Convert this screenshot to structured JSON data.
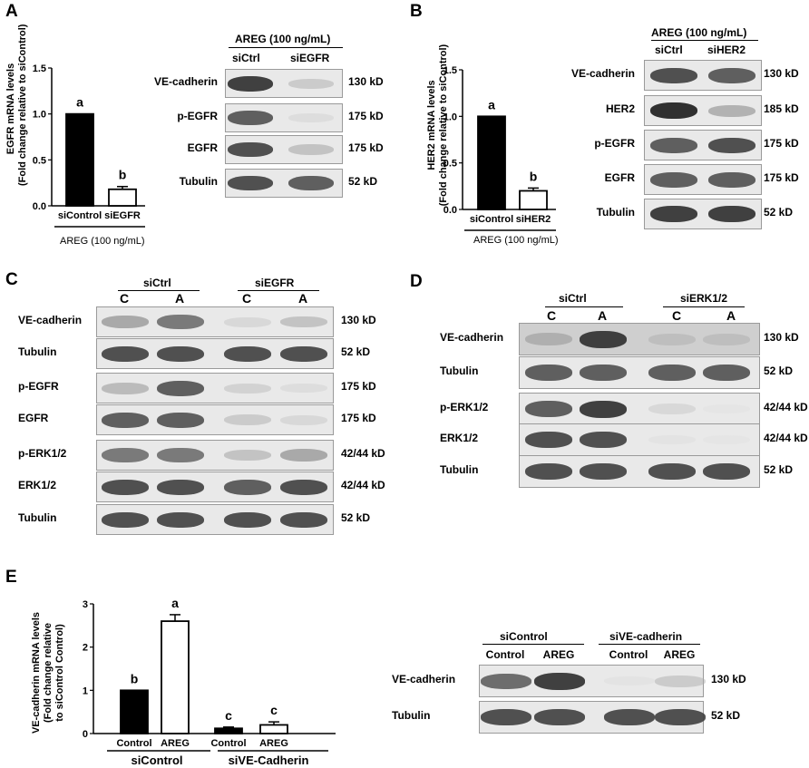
{
  "panels": {
    "A": {
      "label": "A",
      "chart_data": {
        "type": "bar",
        "categories": [
          "siControl",
          "siEGFR"
        ],
        "values": [
          1.0,
          0.18
        ],
        "errors": [
          0.0,
          0.03
        ],
        "sig_letters": [
          "a",
          "b"
        ],
        "fills": [
          "#000000",
          "#ffffff"
        ],
        "ylabel_line1": "EGFR mRNA levels",
        "ylabel_line2": "(Fold change relative to siControl)",
        "yticks": [
          "0.0",
          "0.5",
          "1.0",
          "1.5"
        ],
        "ylim": [
          0,
          1.5
        ],
        "treatment": "AREG (100 ng/mL)"
      },
      "blot": {
        "header": "AREG (100  ng/mL)",
        "groups": [
          "siCtrl",
          "siEGFR"
        ],
        "rows": [
          {
            "name": "VE-cadherin",
            "kd": "130 kD",
            "intensity": [
              0.9,
              0.3
            ]
          },
          {
            "name": "p-EGFR",
            "kd": "175 kD",
            "intensity": [
              0.8,
              0.15
            ]
          },
          {
            "name": "EGFR",
            "kd": "175 kD",
            "intensity": [
              0.85,
              0.35
            ]
          },
          {
            "name": "Tubulin",
            "kd": "52 kD",
            "intensity": [
              0.85,
              0.8
            ]
          }
        ]
      }
    },
    "B": {
      "label": "B",
      "chart_data": {
        "type": "bar",
        "categories": [
          "siControl",
          "siHER2"
        ],
        "values": [
          1.0,
          0.2
        ],
        "errors": [
          0.0,
          0.03
        ],
        "sig_letters": [
          "a",
          "b"
        ],
        "fills": [
          "#000000",
          "#ffffff"
        ],
        "ylabel_line1": "HER2 mRNA levels",
        "ylabel_line2": "(Fold change relative to siControl)",
        "yticks": [
          "0.0",
          "0.5",
          "1.0",
          "1.5"
        ],
        "ylim": [
          0,
          1.5
        ],
        "treatment": "AREG (100 ng/mL)"
      },
      "blot": {
        "header": "AREG (100  ng/mL)",
        "groups": [
          "siCtrl",
          "siHER2"
        ],
        "rows": [
          {
            "name": "VE-cadherin",
            "kd": "130 kD",
            "intensity": [
              0.85,
              0.8
            ]
          },
          {
            "name": "HER2",
            "kd": "185 kD",
            "intensity": [
              0.95,
              0.45
            ]
          },
          {
            "name": "p-EGFR",
            "kd": "175 kD",
            "intensity": [
              0.8,
              0.85
            ]
          },
          {
            "name": "EGFR",
            "kd": "175 kD",
            "intensity": [
              0.8,
              0.8
            ]
          },
          {
            "name": "Tubulin",
            "kd": "52 kD",
            "intensity": [
              0.9,
              0.9
            ]
          }
        ]
      }
    },
    "C": {
      "label": "C",
      "groups": [
        "siCtrl",
        "siEGFR"
      ],
      "lanes": [
        "C",
        "A",
        "C",
        "A"
      ],
      "rows": [
        {
          "name": "VE-cadherin",
          "kd": "130 kD",
          "intensity": [
            0.5,
            0.7,
            0.2,
            0.35
          ]
        },
        {
          "name": "Tubulin",
          "kd": "52 kD",
          "intensity": [
            0.85,
            0.85,
            0.85,
            0.85
          ]
        },
        {
          "name": "p-EGFR",
          "kd": "175 kD",
          "intensity": [
            0.4,
            0.8,
            0.25,
            0.15
          ]
        },
        {
          "name": "EGFR",
          "kd": "175 kD",
          "intensity": [
            0.8,
            0.8,
            0.3,
            0.2
          ]
        },
        {
          "name": "p-ERK1/2",
          "kd": "42/44 kD",
          "intensity": [
            0.7,
            0.7,
            0.35,
            0.5
          ]
        },
        {
          "name": "ERK1/2",
          "kd": "42/44 kD",
          "intensity": [
            0.85,
            0.85,
            0.8,
            0.85
          ]
        },
        {
          "name": "Tubulin",
          "kd": "52 kD",
          "intensity": [
            0.85,
            0.85,
            0.85,
            0.85
          ]
        }
      ]
    },
    "D": {
      "label": "D",
      "groups": [
        "siCtrl",
        "siERK1/2"
      ],
      "lanes": [
        "C",
        "A",
        "C",
        "A"
      ],
      "rows": [
        {
          "name": "VE-cadherin",
          "kd": "130 kD",
          "intensity": [
            0.4,
            0.9,
            0.3,
            0.3
          ]
        },
        {
          "name": "Tubulin",
          "kd": "52 kD",
          "intensity": [
            0.8,
            0.8,
            0.8,
            0.8
          ]
        },
        {
          "name": "p-ERK1/2",
          "kd": "42/44 kD",
          "intensity": [
            0.8,
            0.9,
            0.2,
            0.05
          ]
        },
        {
          "name": "ERK1/2",
          "kd": "42/44 kD",
          "intensity": [
            0.85,
            0.85,
            0.08,
            0.05
          ]
        },
        {
          "name": "Tubulin",
          "kd": "52 kD",
          "intensity": [
            0.85,
            0.85,
            0.85,
            0.85
          ]
        }
      ]
    },
    "E": {
      "label": "E",
      "chart_data": {
        "type": "bar",
        "categories": [
          "Control",
          "AREG",
          "Control",
          "AREG"
        ],
        "groups": [
          "siControl",
          "siVE-Cadherin"
        ],
        "values": [
          1.0,
          2.6,
          0.12,
          0.2
        ],
        "errors": [
          0.0,
          0.15,
          0.03,
          0.07
        ],
        "sig_letters": [
          "b",
          "a",
          "c",
          "c"
        ],
        "fills": [
          "#000000",
          "#ffffff",
          "#000000",
          "#ffffff"
        ],
        "ylabel_lines": [
          "VE-cadherin mRNA  levels",
          "(Fold change relative",
          "to siControl Control)"
        ],
        "yticks": [
          "0",
          "1",
          "2",
          "3"
        ],
        "ylim": [
          0,
          3
        ]
      },
      "blot": {
        "groups": [
          "siControl",
          "siVE-cadherin"
        ],
        "lanes": [
          "Control",
          "AREG",
          "Control",
          "AREG"
        ],
        "rows": [
          {
            "name": "VE-cadherin",
            "kd": "130 kD",
            "intensity": [
              0.75,
              0.9,
              0.08,
              0.3
            ]
          },
          {
            "name": "Tubulin",
            "kd": "52 kD",
            "intensity": [
              0.85,
              0.85,
              0.85,
              0.85
            ]
          }
        ]
      }
    }
  }
}
